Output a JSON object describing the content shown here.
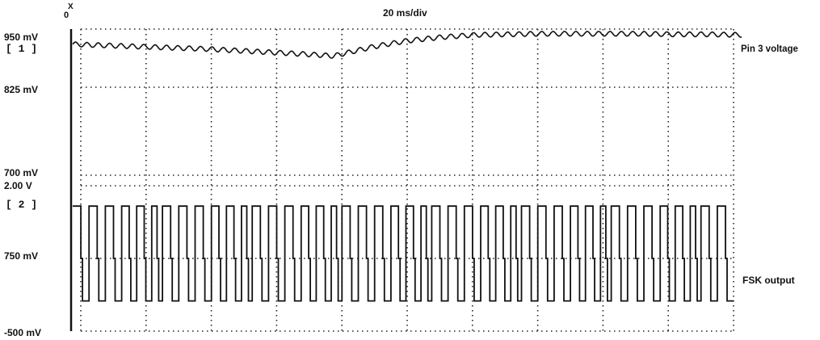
{
  "chart_data": {
    "type": "line",
    "title": "20 ms/div",
    "trigger_marker": "X",
    "trigger_origin": "0",
    "grid": true,
    "x_divisions": 10,
    "timebase_ms_per_div": 20,
    "channels": [
      {
        "id": "1",
        "bracket": "[ 1 ]",
        "name": "Pin 3 voltage",
        "scale_labels": [
          "950 mV",
          "825 mV",
          "700 mV"
        ],
        "ylim_mV": [
          700,
          950
        ],
        "x_ms": [
          0,
          10,
          20,
          30,
          40,
          50,
          60,
          70,
          78,
          84,
          90,
          100,
          110,
          120,
          130,
          140,
          150,
          160,
          170,
          180,
          190,
          200
        ],
        "y_mV": [
          924,
          922,
          920,
          918,
          916,
          913,
          910,
          907,
          904,
          912,
          920,
          930,
          936,
          940,
          941,
          942,
          942,
          942,
          942,
          941,
          941,
          940
        ],
        "ripple_mV": 4,
        "ripple_period_ms": 3.4
      },
      {
        "id": "2",
        "bracket": "[ 2 ]",
        "name": "FSK output",
        "scale_labels": [
          "2.00 V",
          "750 mV",
          "-500 mV"
        ],
        "ylim_V": [
          -0.5,
          2.0
        ],
        "high_V": 1.65,
        "low_V": 0.02,
        "mid_V": 0.75,
        "waveform": "square",
        "note_time_ms": 11.0,
        "space_time_ms": 15.0,
        "note_cycles": [
          {
            "period_ms": 5.0
          },
          {
            "period_ms": 5.0
          },
          {
            "period_ms": 5.0
          },
          {
            "period_ms": 4.6
          },
          {
            "period_ms": 4.6
          },
          {
            "period_ms": 3.3
          }
        ]
      }
    ]
  }
}
